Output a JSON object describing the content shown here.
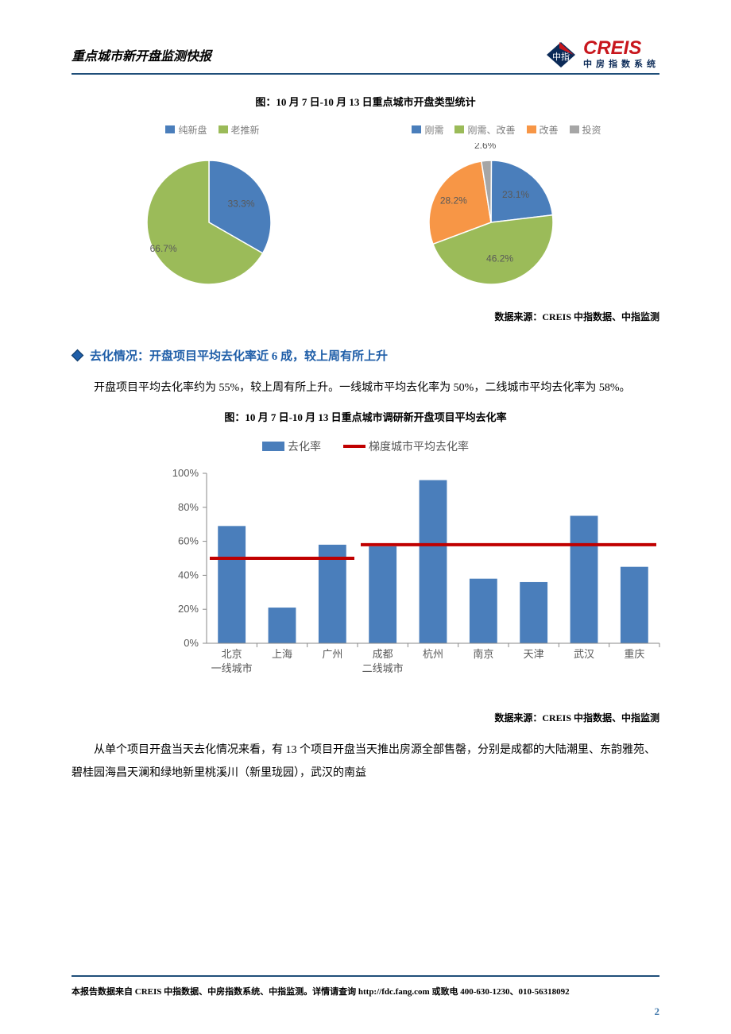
{
  "header": {
    "title": "重点城市新开盘监测快报",
    "logo_text_main": "CREIS",
    "logo_text_sub": "中房指数系统",
    "logo_badge": "中指",
    "rule_color": "#1f4e79"
  },
  "colors": {
    "blue": "#4a7ebb",
    "green": "#9bbb59",
    "orange": "#f79646",
    "gray": "#a6a6a6",
    "text_gray": "#7f7f7f",
    "red": "#c00000",
    "axis": "#888888",
    "grid": "#bfbfbf",
    "bg": "#ffffff",
    "section_blue": "#1f5ea8",
    "logo_red": "#c8161d",
    "logo_navy": "#0b2a57"
  },
  "pies": {
    "title": "图：10 月 7 日-10 月 13 日重点城市开盘类型统计",
    "left": {
      "legend": [
        "纯新盘",
        "老推新"
      ],
      "legend_colors": [
        "#4a7ebb",
        "#9bbb59"
      ],
      "slices": [
        {
          "label": "33.3%",
          "value": 33.3,
          "color": "#4a7ebb"
        },
        {
          "label": "66.7%",
          "value": 66.7,
          "color": "#9bbb59"
        }
      ],
      "label_fontsize": 12
    },
    "right": {
      "legend": [
        "刚需",
        "刚需、改善",
        "改善",
        "投资"
      ],
      "legend_colors": [
        "#4a7ebb",
        "#9bbb59",
        "#f79646",
        "#a6a6a6"
      ],
      "slices": [
        {
          "label": "23.1%",
          "value": 23.1,
          "color": "#4a7ebb"
        },
        {
          "label": "46.2%",
          "value": 46.2,
          "color": "#9bbb59"
        },
        {
          "label": "28.2%",
          "value": 28.2,
          "color": "#f79646"
        },
        {
          "label": "2.6%",
          "value": 2.6,
          "color": "#a6a6a6"
        }
      ],
      "label_fontsize": 12
    },
    "source": "数据来源：CREIS 中指数据、中指监测"
  },
  "section": {
    "heading": "去化情况：开盘项目平均去化率近 6 成，较上周有所上升",
    "para1": "开盘项目平均去化率约为 55%，较上周有所上升。一线城市平均去化率为 50%，二线城市平均去化率为 58%。"
  },
  "barchart": {
    "title": "图：10 月 7 日-10 月 13 日重点城市调研新开盘项目平均去化率",
    "legend_bar": "去化率",
    "legend_line": "梯度城市平均去化率",
    "type": "bar",
    "ylim": [
      0,
      100
    ],
    "ytick_step": 20,
    "ytick_labels": [
      "0%",
      "20%",
      "40%",
      "60%",
      "80%",
      "100%"
    ],
    "bar_color": "#4a7ebb",
    "line_color": "#c00000",
    "axis_color": "#888888",
    "label_fontsize": 13,
    "bar_width": 0.55,
    "groups": [
      {
        "group_label": "一线城市",
        "avg": 50,
        "cities": [
          {
            "name": "北京",
            "value": 69
          },
          {
            "name": "上海",
            "value": 21
          },
          {
            "name": "广州",
            "value": 58
          }
        ]
      },
      {
        "group_label": "二线城市",
        "avg": 58,
        "cities": [
          {
            "name": "成都",
            "value": 57
          },
          {
            "name": "杭州",
            "value": 96
          },
          {
            "name": "南京",
            "value": 38
          },
          {
            "name": "天津",
            "value": 36
          },
          {
            "name": "武汉",
            "value": 75
          },
          {
            "name": "重庆",
            "value": 45
          }
        ]
      }
    ],
    "source": "数据来源：CREIS 中指数据、中指监测"
  },
  "tail_para": "从单个项目开盘当天去化情况来看，有 13 个项目开盘当天推出房源全部售罄，分别是成都的大陆潮里、东韵雅苑、碧桂园海昌天澜和绿地新里桃溪川（新里珑园），武汉的南益",
  "footer": {
    "text": "本报告数据来自 CREIS 中指数据、中房指数系统、中指监测。详情请查询 http://fdc.fang.com 或致电 400-630-1230、010-56318092",
    "page": "2"
  }
}
